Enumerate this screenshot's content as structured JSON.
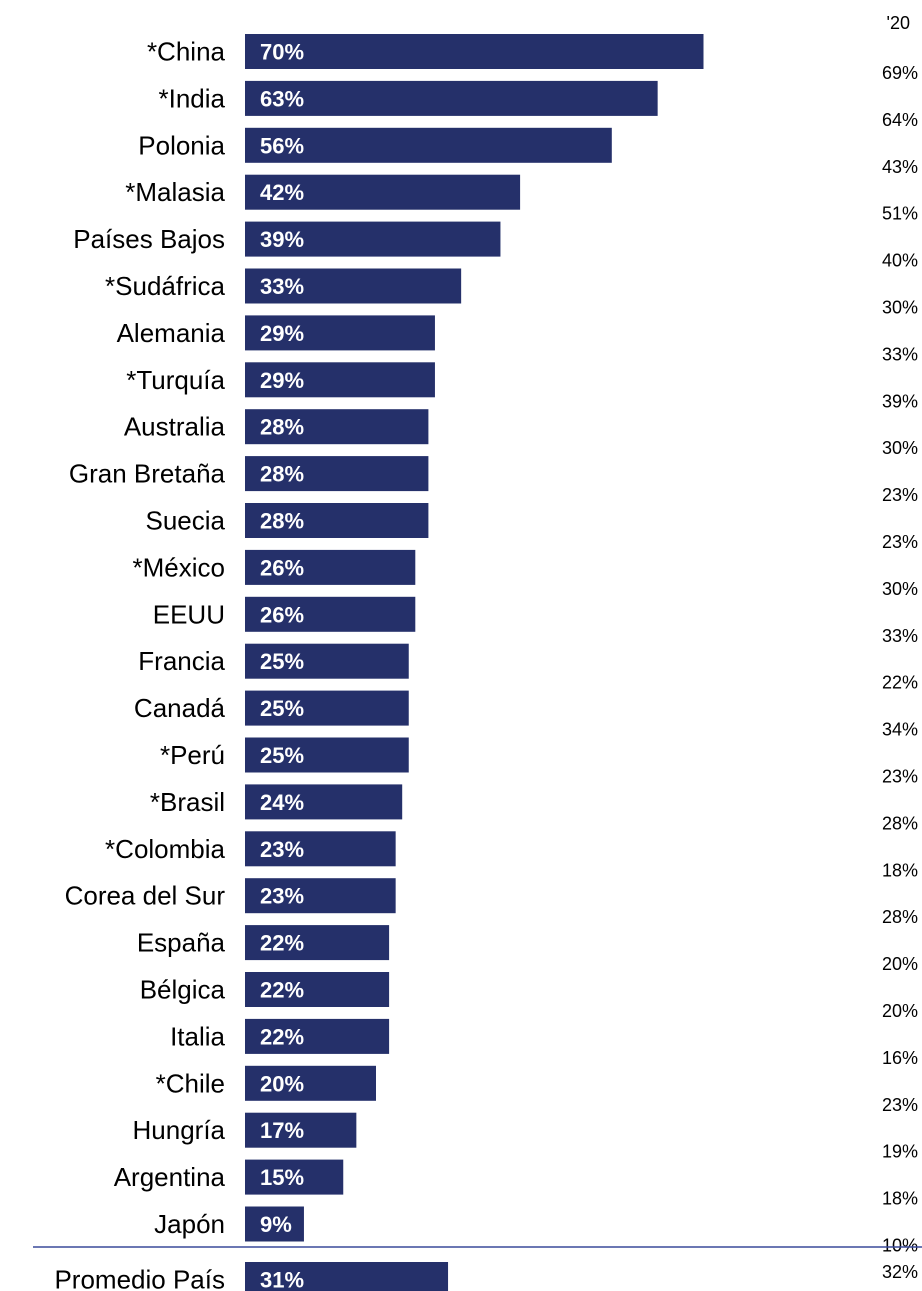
{
  "chart_data": {
    "type": "bar",
    "orientation": "horizontal",
    "prev_header": "'20",
    "bar_color": "#25306a",
    "separator_color": "#3a4a9a",
    "xlim": [
      0,
      100
    ],
    "categories": [
      "*China",
      "*India",
      "Polonia",
      "*Malasia",
      "Países Bajos",
      "*Sudáfrica",
      "Alemania",
      "*Turquía",
      "Australia",
      "Gran Bretaña",
      "Suecia",
      "*México",
      "EEUU",
      "Francia",
      "Canadá",
      "*Perú",
      "*Brasil",
      "*Colombia",
      "Corea del Sur",
      "España",
      "Bélgica",
      "Italia",
      "*Chile",
      "Hungría",
      "Argentina",
      "Japón"
    ],
    "values": [
      70,
      63,
      56,
      42,
      39,
      33,
      29,
      29,
      28,
      28,
      28,
      26,
      26,
      25,
      25,
      25,
      24,
      23,
      23,
      22,
      22,
      22,
      20,
      17,
      15,
      9
    ],
    "value_labels": [
      "70%",
      "63%",
      "56%",
      "42%",
      "39%",
      "33%",
      "29%",
      "29%",
      "28%",
      "28%",
      "28%",
      "26%",
      "26%",
      "25%",
      "25%",
      "25%",
      "24%",
      "23%",
      "23%",
      "22%",
      "22%",
      "22%",
      "20%",
      "17%",
      "15%",
      "9%"
    ],
    "prev_labels": [
      "69%",
      "64%",
      "43%",
      "51%",
      "40%",
      "30%",
      "33%",
      "39%",
      "30%",
      "23%",
      "23%",
      "30%",
      "33%",
      "22%",
      "34%",
      "23%",
      "28%",
      "18%",
      "28%",
      "20%",
      "20%",
      "16%",
      "23%",
      "19%",
      "18%",
      "10%"
    ],
    "summary": {
      "label": "Promedio País",
      "value": 31,
      "value_label": "31%",
      "prev_label": "32%"
    }
  }
}
